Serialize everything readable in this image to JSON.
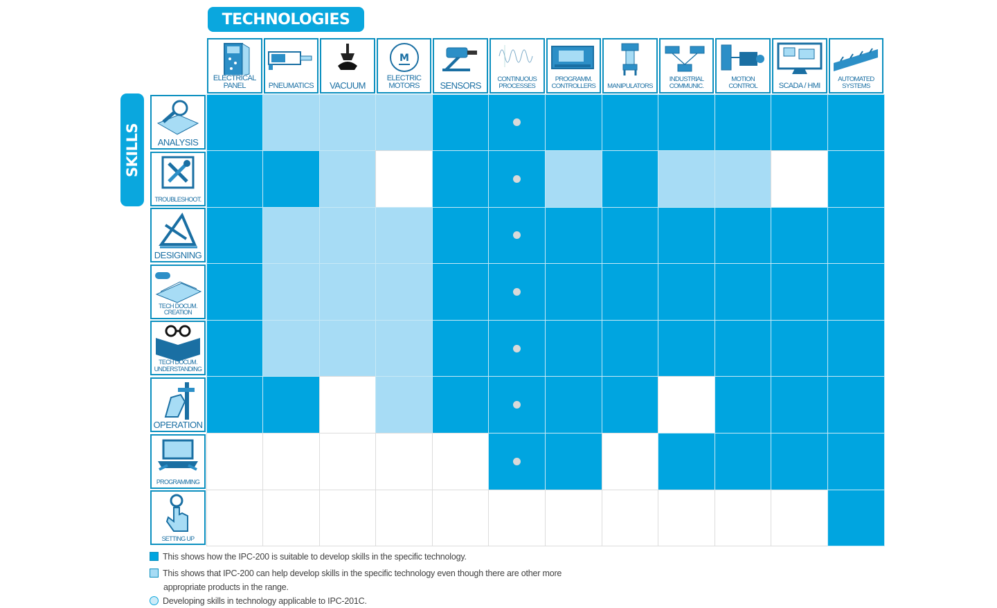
{
  "titles": {
    "technologies": "TECHNOLOGIES",
    "skills": "SKILLS"
  },
  "columns": [
    {
      "label": "ELECTRICAL\nPANEL",
      "icon": "electrical-panel-icon"
    },
    {
      "label": "PNEUMATICS",
      "icon": "pneumatic-cylinder-icon"
    },
    {
      "label": "VACUUM",
      "icon": "vacuum-cup-icon"
    },
    {
      "label": "ELECTRIC\nMOTORS",
      "icon": "motor-icon"
    },
    {
      "label": "SENSORS",
      "icon": "sensor-icon"
    },
    {
      "label": "CONTINUOUS\nPROCESSES",
      "icon": "waveform-icon"
    },
    {
      "label": "PROGRAMM.\nCONTROLLERS",
      "icon": "plc-icon"
    },
    {
      "label": "MANIPULATORS",
      "icon": "manipulator-icon"
    },
    {
      "label": "INDUSTRIAL\nCOMMUNIC.",
      "icon": "network-icon"
    },
    {
      "label": "MOTION\nCONTROL",
      "icon": "servo-motor-icon"
    },
    {
      "label": "SCADA / HMI",
      "icon": "monitor-icon"
    },
    {
      "label": "AUTOMATED\nSYSTEMS",
      "icon": "conveyor-icon"
    }
  ],
  "rows": [
    {
      "label": "ANALYSIS",
      "icon": "magnifier-book-icon",
      "cells": [
        "D",
        "L",
        "L",
        "L",
        "D",
        "D",
        "D",
        "D",
        "D",
        "D",
        "D",
        "D"
      ]
    },
    {
      "label": "TROUBLESHOOT.",
      "icon": "tools-icon",
      "cells": [
        "D",
        "D",
        "L",
        "W",
        "D",
        "D",
        "L",
        "D",
        "L",
        "L",
        "W",
        "D"
      ]
    },
    {
      "label": "DESIGNING",
      "icon": "drafting-icon",
      "cells": [
        "D",
        "L",
        "L",
        "L",
        "D",
        "D",
        "D",
        "D",
        "D",
        "D",
        "D",
        "D"
      ]
    },
    {
      "label": "TECH DOCUM.\nCREATION",
      "icon": "document-icon",
      "cells": [
        "D",
        "L",
        "L",
        "L",
        "D",
        "D",
        "D",
        "D",
        "D",
        "D",
        "D",
        "D"
      ]
    },
    {
      "label": "TECH DOCUM.\nUNDERSTANDING",
      "icon": "book-glasses-icon",
      "cells": [
        "D",
        "L",
        "L",
        "L",
        "D",
        "D",
        "D",
        "D",
        "D",
        "D",
        "D",
        "D"
      ]
    },
    {
      "label": "OPERATION",
      "icon": "hand-lever-icon",
      "cells": [
        "D",
        "D",
        "W",
        "L",
        "D",
        "D",
        "D",
        "D",
        "W",
        "D",
        "D",
        "D"
      ]
    },
    {
      "label": "PROGRAMMING",
      "icon": "laptop-icon",
      "cells": [
        "W",
        "W",
        "W",
        "W",
        "W",
        "D",
        "D",
        "W",
        "D",
        "D",
        "D",
        "D"
      ]
    },
    {
      "label": "SETTING UP",
      "icon": "finger-button-icon",
      "cells": [
        "W",
        "W",
        "W",
        "W",
        "W",
        "W",
        "W",
        "W",
        "W",
        "W",
        "W",
        "D"
      ]
    }
  ],
  "dot_column_index": 5,
  "dot_rows": [
    0,
    1,
    2,
    3,
    4,
    5,
    6
  ],
  "colors": {
    "dark": "#00a5e0",
    "light": "#a7dcf5",
    "white": "#ffffff",
    "accent": "#0aa7de"
  },
  "legend": {
    "dark": "This shows how the IPC-200 is suitable to develop skills in the specific technology.",
    "light_line1": "This shows that IPC-200 can help develop skills in the specific technology even though there are other more",
    "light_line2": "appropriate products in the range.",
    "circle": "Developing skills in technology applicable to IPC-201C."
  }
}
